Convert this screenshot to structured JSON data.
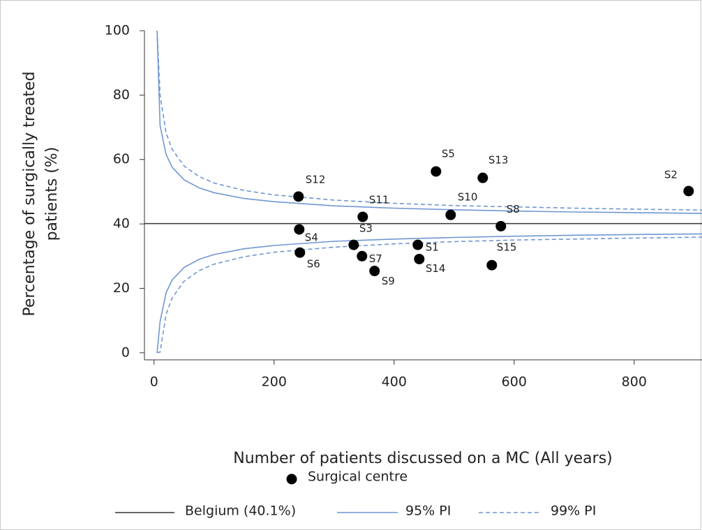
{
  "chart_data": {
    "type": "scatter",
    "x_label": "Number of patients discussed on a MC (All years)",
    "y_label": [
      "Percentage of surgically treated",
      "patients (%)"
    ],
    "xlim": [
      -16,
      913
    ],
    "ylim": [
      -2.2,
      100
    ],
    "xticks": [
      0,
      200,
      400,
      600,
      800
    ],
    "yticks": [
      0,
      20,
      40,
      60,
      80,
      100
    ],
    "points": {
      "name": "Surgical centre",
      "color": "#000000",
      "labels": [
        "S12",
        "S4",
        "S6",
        "S11",
        "S3",
        "S7",
        "S9",
        "S1",
        "S14",
        "S5",
        "S10",
        "S13",
        "S8",
        "S15",
        "S2"
      ],
      "x": [
        240.7,
        241.9,
        243,
        347.7,
        332.6,
        346.5,
        367.4,
        439.5,
        441.9,
        469.8,
        494.2,
        547.7,
        577.9,
        562.8,
        890.7
      ],
      "y": [
        48.5,
        38.3,
        31.1,
        42.2,
        33.5,
        30.0,
        25.4,
        33.5,
        29.1,
        56.3,
        42.8,
        54.3,
        39.3,
        27.2,
        50.2
      ]
    },
    "reference": {
      "name": "Belgium (40.1%)",
      "value": 40.1,
      "color": "#333333"
    },
    "intervals": [
      {
        "name": "95% PI",
        "color": "#6f96d1",
        "dashed": false,
        "x": [
          5,
          10,
          20,
          30,
          50,
          75,
          100,
          150,
          200,
          300,
          400,
          500,
          600,
          700,
          800,
          913
        ],
        "upper": [
          100,
          70.5,
          61.6,
          57.6,
          53.7,
          51.2,
          49.7,
          47.9,
          46.9,
          45.6,
          44.9,
          44.4,
          44.0,
          43.7,
          43.5,
          43.3
        ],
        "lower": [
          0,
          9.7,
          18.6,
          22.6,
          26.5,
          29.0,
          30.5,
          32.3,
          33.3,
          34.6,
          35.3,
          35.8,
          36.2,
          36.5,
          36.7,
          36.9
        ]
      },
      {
        "name": "99% PI",
        "color": "#6f96d1",
        "dashed": true,
        "x": [
          5,
          10,
          20,
          30,
          50,
          75,
          100,
          150,
          200,
          300,
          400,
          500,
          600,
          700,
          800,
          913
        ],
        "upper": [
          100,
          80.0,
          68.3,
          63.2,
          58.0,
          54.7,
          52.7,
          50.4,
          49.0,
          47.4,
          46.4,
          45.7,
          45.3,
          44.9,
          44.6,
          44.3
        ],
        "lower": [
          0,
          0.2,
          11.9,
          17.0,
          22.2,
          25.5,
          27.5,
          29.8,
          31.2,
          32.8,
          33.8,
          34.5,
          35.0,
          35.3,
          35.6,
          35.9
        ]
      }
    ]
  }
}
